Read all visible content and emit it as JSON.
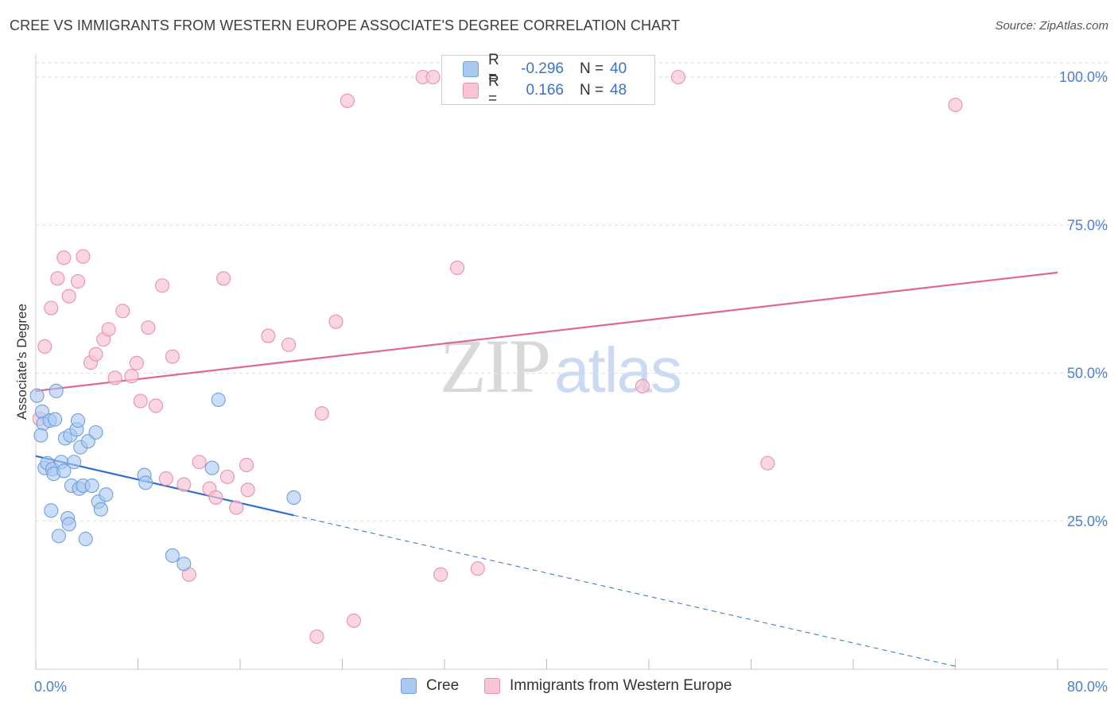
{
  "header": {
    "title": "CREE VS IMMIGRANTS FROM WESTERN EUROPE ASSOCIATE'S DEGREE CORRELATION CHART",
    "source": "Source: ZipAtlas.com"
  },
  "watermark": {
    "zip": "ZIP",
    "atlas": "atlas"
  },
  "legend": {
    "rows": [
      {
        "r_label": "R =",
        "r_value": "-0.296",
        "n_label": "N =",
        "n_value": "40",
        "color": "#aac8f0",
        "border": "#6f9fdf"
      },
      {
        "r_label": "R =",
        "r_value": "0.166",
        "n_label": "N =",
        "n_value": "48",
        "color": "#f8c5d5",
        "border": "#e891ab"
      }
    ]
  },
  "bottom_legend": {
    "cree": "Cree",
    "immigrants": "Immigrants from Western Europe"
  },
  "chart_data": {
    "type": "scatter",
    "title": "CREE VS IMMIGRANTS FROM WESTERN EUROPE ASSOCIATE'S DEGREE CORRELATION CHART",
    "xlabel": "",
    "ylabel": "Associate's Degree",
    "xlim": [
      0,
      80
    ],
    "ylim": [
      0,
      105
    ],
    "x_ticks": [
      "0.0%",
      "80.0%"
    ],
    "y_ticks": [
      {
        "value": 25,
        "label": "25.0%"
      },
      {
        "value": 50,
        "label": "50.0%"
      },
      {
        "value": 75,
        "label": "75.0%"
      },
      {
        "value": 100,
        "label": "100.0%"
      }
    ],
    "grid": true,
    "colors": {
      "cree": "#6f9fdf",
      "cree_line": "#2e6fd1",
      "immigrants": "#e891ab",
      "immigrants_line": "#e0688f"
    },
    "series": [
      {
        "name": "Cree",
        "trend": {
          "x_start": 0,
          "y_start": 36.0,
          "x_solid_end": 20.2,
          "y_solid_end": 26.0,
          "x_end": 72.0,
          "y_end": 0.5
        },
        "points": [
          [
            0.1,
            46.2
          ],
          [
            0.5,
            43.5
          ],
          [
            0.6,
            41.5
          ],
          [
            0.4,
            39.5
          ],
          [
            0.7,
            34.0
          ],
          [
            0.9,
            34.8
          ],
          [
            1.1,
            42.0
          ],
          [
            1.3,
            33.8
          ],
          [
            1.4,
            33.0
          ],
          [
            1.6,
            47.0
          ],
          [
            1.5,
            42.2
          ],
          [
            1.2,
            26.8
          ],
          [
            1.8,
            22.5
          ],
          [
            2.0,
            35.0
          ],
          [
            2.2,
            33.5
          ],
          [
            2.3,
            39.0
          ],
          [
            2.5,
            25.5
          ],
          [
            2.6,
            24.5
          ],
          [
            2.8,
            31.0
          ],
          [
            2.7,
            39.5
          ],
          [
            3.0,
            35.0
          ],
          [
            3.2,
            40.5
          ],
          [
            3.3,
            42.0
          ],
          [
            3.4,
            30.5
          ],
          [
            3.5,
            37.5
          ],
          [
            3.7,
            31.0
          ],
          [
            3.9,
            22.0
          ],
          [
            4.1,
            38.5
          ],
          [
            4.4,
            31.0
          ],
          [
            4.7,
            40.0
          ],
          [
            4.9,
            28.3
          ],
          [
            5.1,
            27.0
          ],
          [
            5.5,
            29.5
          ],
          [
            8.5,
            32.8
          ],
          [
            8.6,
            31.5
          ],
          [
            10.7,
            19.2
          ],
          [
            11.6,
            17.8
          ],
          [
            13.8,
            34.0
          ],
          [
            14.3,
            45.5
          ],
          [
            20.2,
            29.0
          ]
        ]
      },
      {
        "name": "Immigrants from Western Europe",
        "trend": {
          "x_start": 0,
          "y_start": 47.0,
          "x_end": 80,
          "y_end": 67.0
        },
        "points": [
          [
            0.3,
            42.3
          ],
          [
            0.7,
            54.5
          ],
          [
            1.2,
            61.0
          ],
          [
            1.7,
            66.0
          ],
          [
            2.2,
            69.5
          ],
          [
            2.6,
            63.0
          ],
          [
            3.3,
            65.5
          ],
          [
            3.7,
            69.7
          ],
          [
            4.3,
            51.8
          ],
          [
            4.7,
            53.2
          ],
          [
            5.3,
            55.7
          ],
          [
            5.7,
            57.4
          ],
          [
            6.2,
            49.2
          ],
          [
            6.8,
            60.5
          ],
          [
            7.5,
            49.5
          ],
          [
            7.9,
            51.7
          ],
          [
            8.2,
            45.3
          ],
          [
            8.8,
            57.7
          ],
          [
            9.4,
            44.5
          ],
          [
            9.9,
            64.8
          ],
          [
            10.2,
            32.2
          ],
          [
            10.7,
            52.8
          ],
          [
            11.6,
            31.2
          ],
          [
            12.0,
            16.0
          ],
          [
            12.8,
            35.0
          ],
          [
            13.6,
            30.5
          ],
          [
            14.1,
            29.0
          ],
          [
            14.7,
            66.0
          ],
          [
            15.0,
            32.5
          ],
          [
            15.7,
            27.3
          ],
          [
            16.5,
            34.5
          ],
          [
            16.6,
            30.3
          ],
          [
            18.2,
            56.3
          ],
          [
            19.8,
            54.8
          ],
          [
            22.0,
            5.5
          ],
          [
            22.4,
            43.2
          ],
          [
            23.5,
            58.7
          ],
          [
            24.4,
            96.0
          ],
          [
            24.9,
            8.2
          ],
          [
            30.3,
            100.0
          ],
          [
            31.1,
            100.0
          ],
          [
            31.7,
            16.0
          ],
          [
            33.0,
            67.8
          ],
          [
            34.6,
            17.0
          ],
          [
            47.5,
            47.8
          ],
          [
            50.3,
            100.0
          ],
          [
            57.3,
            34.8
          ],
          [
            72.0,
            95.3
          ]
        ]
      }
    ]
  }
}
